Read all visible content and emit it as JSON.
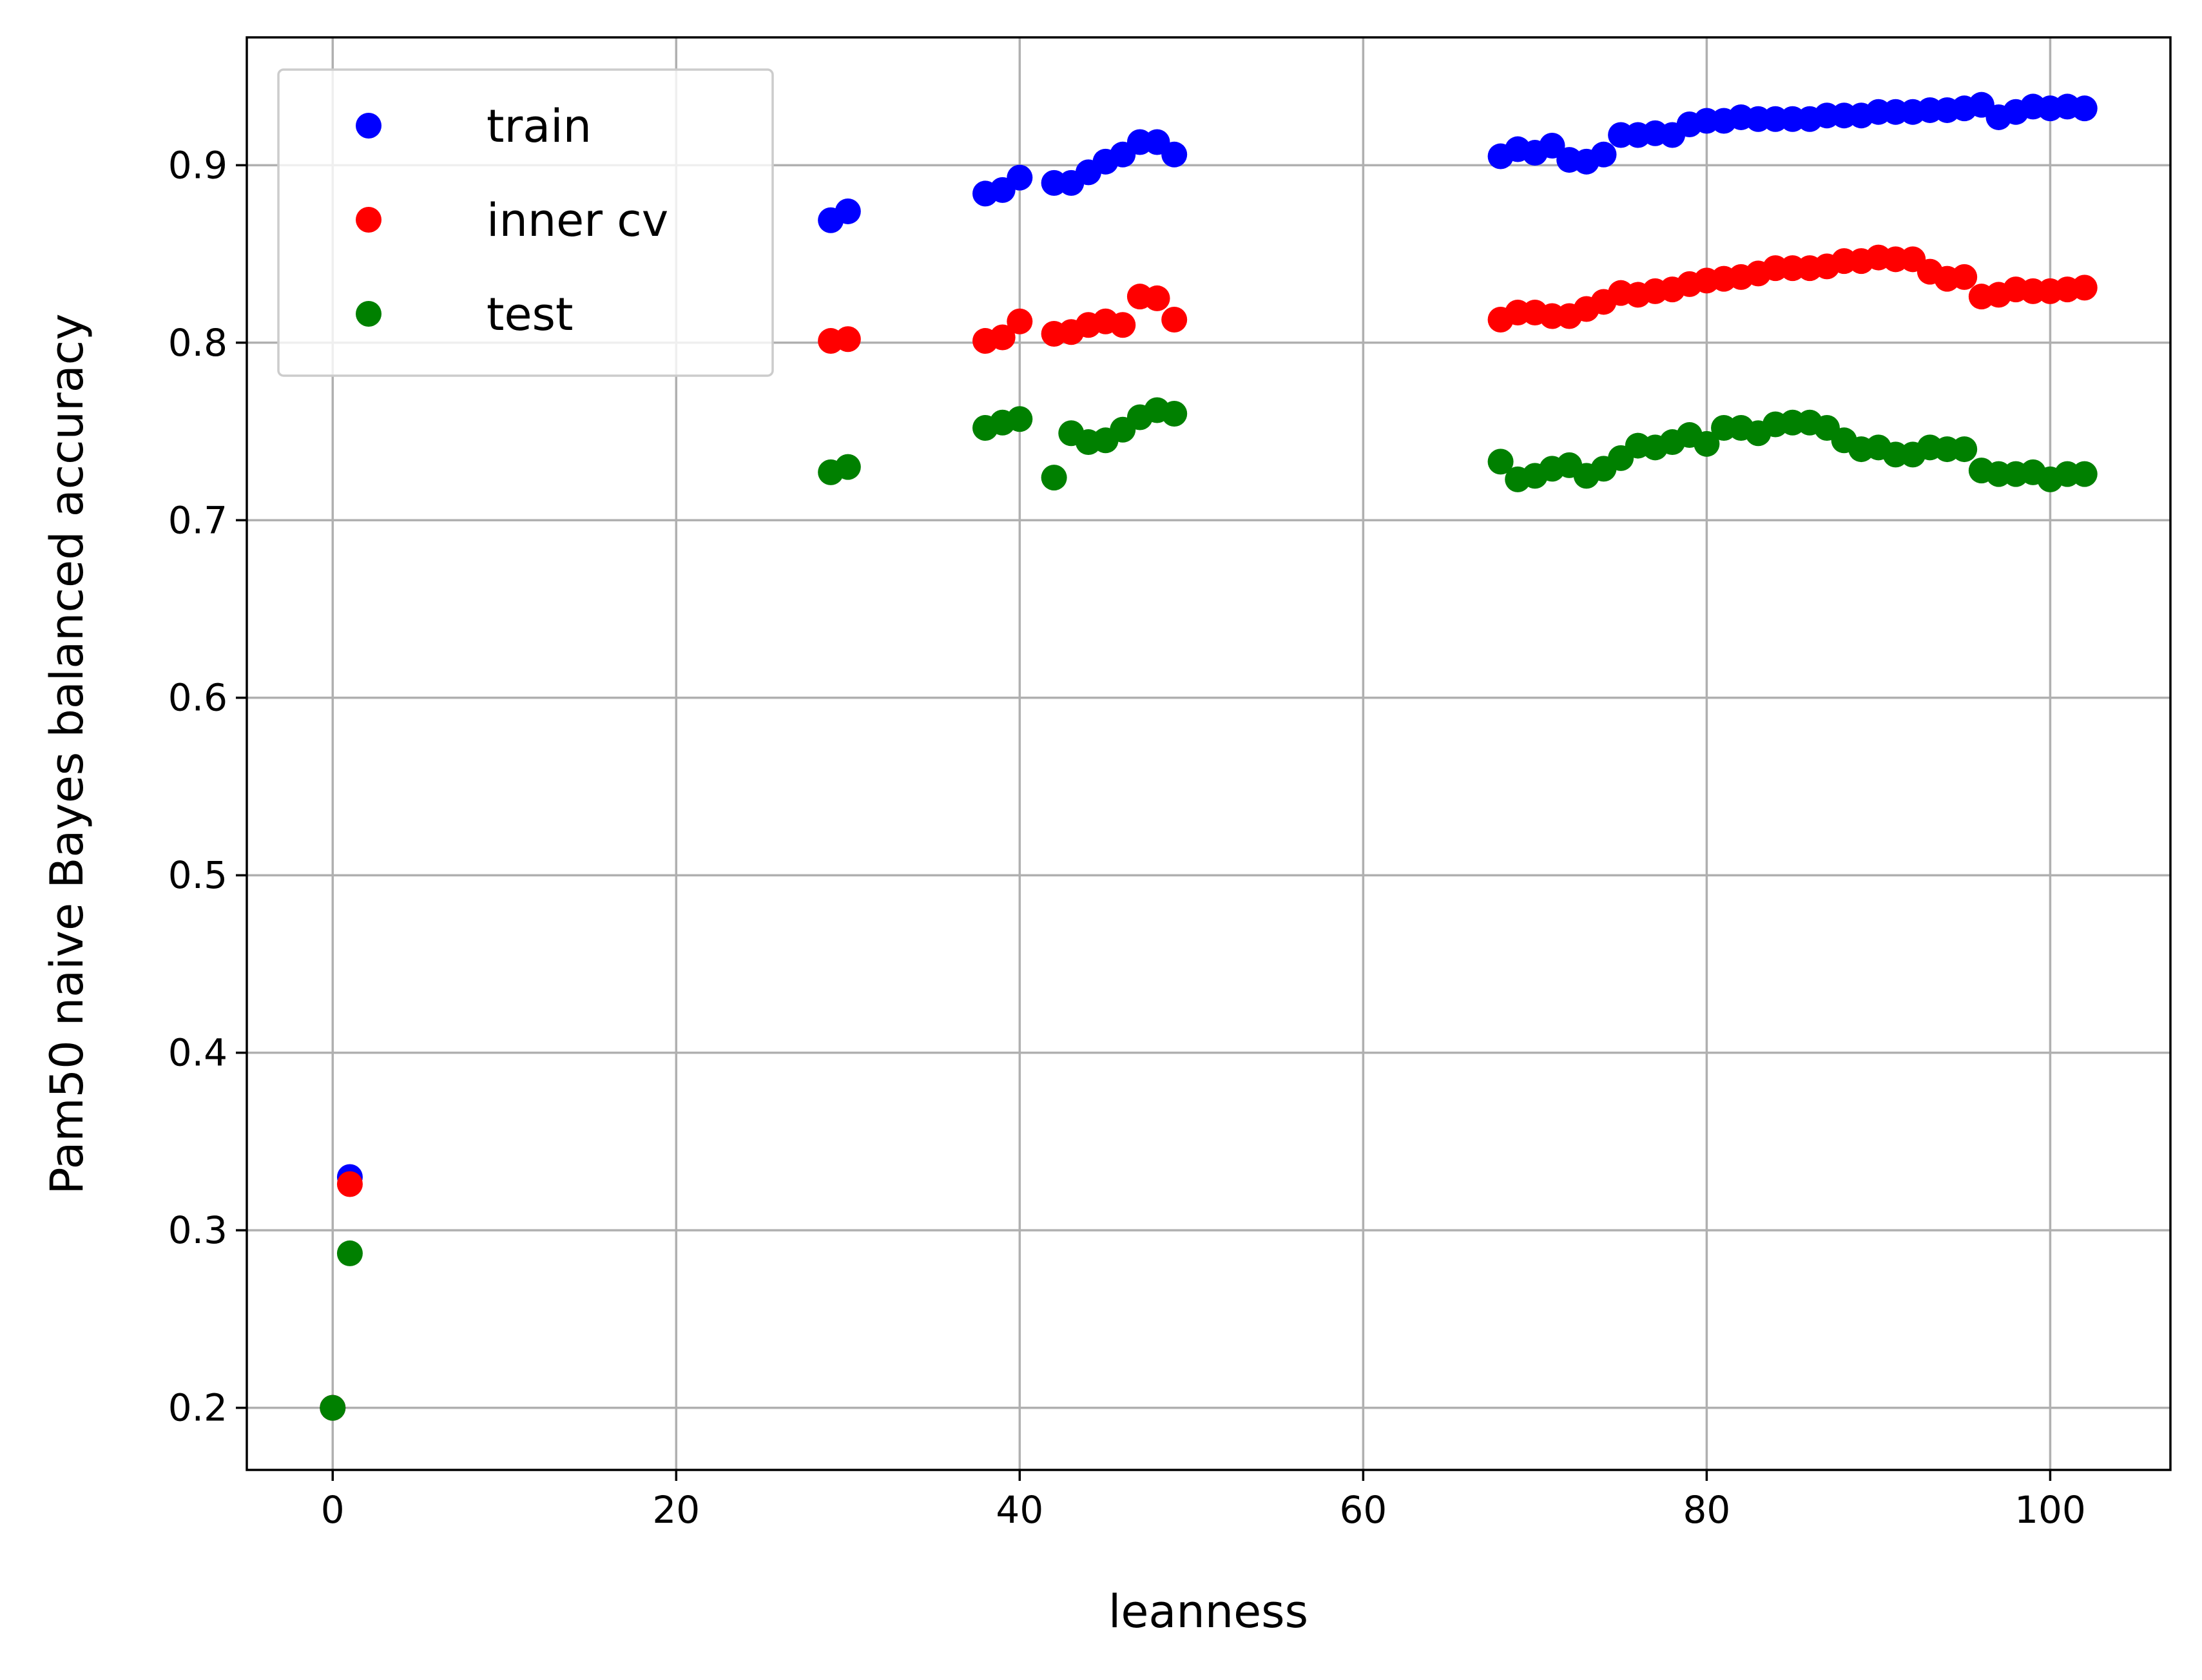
{
  "chart_data": {
    "type": "scatter",
    "xlabel": "leanness",
    "ylabel": "Pam50 naive Bayes balanced accuracy",
    "xlim": [
      -5,
      107
    ],
    "ylim": [
      0.165,
      0.972
    ],
    "xticks": [
      0,
      20,
      40,
      60,
      80,
      100
    ],
    "yticks": [
      0.2,
      0.3,
      0.4,
      0.5,
      0.6,
      0.7,
      0.8,
      0.9
    ],
    "x_tick_labels": [
      "0",
      "20",
      "40",
      "60",
      "80",
      "100"
    ],
    "y_tick_labels": [
      "0.2",
      "0.3",
      "0.4",
      "0.5",
      "0.6",
      "0.7",
      "0.8",
      "0.9"
    ],
    "grid": true,
    "legend_position": "top-left",
    "series": [
      {
        "name": "train",
        "color": "#0000ff",
        "points": [
          [
            0,
            0.2
          ],
          [
            1,
            0.33
          ],
          [
            29,
            0.869
          ],
          [
            30,
            0.874
          ],
          [
            38,
            0.884
          ],
          [
            39,
            0.886
          ],
          [
            40,
            0.893
          ],
          [
            42,
            0.89
          ],
          [
            43,
            0.89
          ],
          [
            44,
            0.896
          ],
          [
            45,
            0.902
          ],
          [
            46,
            0.906
          ],
          [
            47,
            0.913
          ],
          [
            48,
            0.913
          ],
          [
            49,
            0.906
          ],
          [
            68,
            0.905
          ],
          [
            69,
            0.909
          ],
          [
            70,
            0.907
          ],
          [
            71,
            0.911
          ],
          [
            72,
            0.903
          ],
          [
            73,
            0.902
          ],
          [
            74,
            0.906
          ],
          [
            75,
            0.917
          ],
          [
            76,
            0.917
          ],
          [
            77,
            0.918
          ],
          [
            78,
            0.917
          ],
          [
            79,
            0.923
          ],
          [
            80,
            0.925
          ],
          [
            81,
            0.925
          ],
          [
            82,
            0.927
          ],
          [
            83,
            0.926
          ],
          [
            84,
            0.926
          ],
          [
            85,
            0.926
          ],
          [
            86,
            0.926
          ],
          [
            87,
            0.928
          ],
          [
            88,
            0.928
          ],
          [
            89,
            0.928
          ],
          [
            90,
            0.93
          ],
          [
            91,
            0.93
          ],
          [
            92,
            0.93
          ],
          [
            93,
            0.931
          ],
          [
            94,
            0.931
          ],
          [
            95,
            0.932
          ],
          [
            96,
            0.934
          ],
          [
            97,
            0.927
          ],
          [
            98,
            0.93
          ],
          [
            99,
            0.933
          ],
          [
            100,
            0.932
          ],
          [
            101,
            0.933
          ],
          [
            102,
            0.932
          ]
        ]
      },
      {
        "name": "inner cv",
        "color": "#ff0000",
        "points": [
          [
            0,
            0.2
          ],
          [
            1,
            0.326
          ],
          [
            29,
            0.801
          ],
          [
            30,
            0.802
          ],
          [
            38,
            0.801
          ],
          [
            39,
            0.803
          ],
          [
            40,
            0.812
          ],
          [
            42,
            0.805
          ],
          [
            43,
            0.806
          ],
          [
            44,
            0.81
          ],
          [
            45,
            0.812
          ],
          [
            46,
            0.81
          ],
          [
            47,
            0.826
          ],
          [
            48,
            0.825
          ],
          [
            49,
            0.813
          ],
          [
            68,
            0.813
          ],
          [
            69,
            0.817
          ],
          [
            70,
            0.817
          ],
          [
            71,
            0.815
          ],
          [
            72,
            0.815
          ],
          [
            73,
            0.819
          ],
          [
            74,
            0.823
          ],
          [
            75,
            0.828
          ],
          [
            76,
            0.827
          ],
          [
            77,
            0.829
          ],
          [
            78,
            0.83
          ],
          [
            79,
            0.833
          ],
          [
            80,
            0.835
          ],
          [
            81,
            0.836
          ],
          [
            82,
            0.837
          ],
          [
            83,
            0.839
          ],
          [
            84,
            0.842
          ],
          [
            85,
            0.842
          ],
          [
            86,
            0.842
          ],
          [
            87,
            0.843
          ],
          [
            88,
            0.846
          ],
          [
            89,
            0.846
          ],
          [
            90,
            0.848
          ],
          [
            91,
            0.847
          ],
          [
            92,
            0.847
          ],
          [
            93,
            0.84
          ],
          [
            94,
            0.836
          ],
          [
            95,
            0.837
          ],
          [
            96,
            0.826
          ],
          [
            97,
            0.827
          ],
          [
            98,
            0.83
          ],
          [
            99,
            0.829
          ],
          [
            100,
            0.829
          ],
          [
            101,
            0.83
          ],
          [
            102,
            0.831
          ]
        ]
      },
      {
        "name": "test",
        "color": "#008000",
        "points": [
          [
            0,
            0.2
          ],
          [
            1,
            0.287
          ],
          [
            29,
            0.727
          ],
          [
            30,
            0.73
          ],
          [
            38,
            0.752
          ],
          [
            39,
            0.755
          ],
          [
            40,
            0.757
          ],
          [
            42,
            0.724
          ],
          [
            43,
            0.749
          ],
          [
            44,
            0.744
          ],
          [
            45,
            0.745
          ],
          [
            46,
            0.751
          ],
          [
            47,
            0.758
          ],
          [
            48,
            0.762
          ],
          [
            49,
            0.76
          ],
          [
            68,
            0.733
          ],
          [
            69,
            0.723
          ],
          [
            70,
            0.725
          ],
          [
            71,
            0.729
          ],
          [
            72,
            0.731
          ],
          [
            73,
            0.725
          ],
          [
            74,
            0.729
          ],
          [
            75,
            0.735
          ],
          [
            76,
            0.742
          ],
          [
            77,
            0.741
          ],
          [
            78,
            0.744
          ],
          [
            79,
            0.748
          ],
          [
            80,
            0.743
          ],
          [
            81,
            0.752
          ],
          [
            82,
            0.752
          ],
          [
            83,
            0.749
          ],
          [
            84,
            0.754
          ],
          [
            85,
            0.755
          ],
          [
            86,
            0.755
          ],
          [
            87,
            0.752
          ],
          [
            88,
            0.745
          ],
          [
            89,
            0.74
          ],
          [
            90,
            0.741
          ],
          [
            91,
            0.737
          ],
          [
            92,
            0.737
          ],
          [
            93,
            0.741
          ],
          [
            94,
            0.74
          ],
          [
            95,
            0.74
          ],
          [
            96,
            0.728
          ],
          [
            97,
            0.726
          ],
          [
            98,
            0.726
          ],
          [
            99,
            0.727
          ],
          [
            100,
            0.723
          ],
          [
            101,
            0.726
          ],
          [
            102,
            0.726
          ]
        ]
      }
    ]
  }
}
